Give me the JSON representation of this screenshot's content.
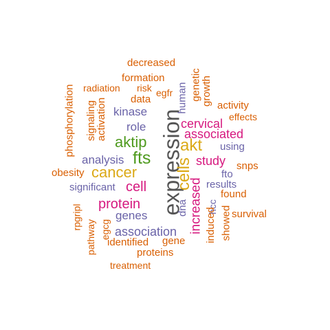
{
  "colors": {
    "orange": "#d95f02",
    "purple": "#6a63a8",
    "pink": "#d6197f",
    "green": "#4e9a1e",
    "gold": "#dba916",
    "dark": "#555555"
  },
  "words": [
    "decreased",
    "formation",
    "radiation",
    "risk",
    "data",
    "egfr",
    "kinase",
    "activation",
    "signaling",
    "phosphorylation",
    "role",
    "aktip",
    "fts",
    "expression",
    "human",
    "genetic",
    "growth",
    "activity",
    "effects",
    "cervical",
    "associated",
    "akt",
    "using",
    "study",
    "cells",
    "snps",
    "analysis",
    "cancer",
    "obesity",
    "fto",
    "results",
    "significant",
    "cell",
    "found",
    "increased",
    "hcc",
    "protein",
    "dna",
    "rpgripl",
    "genes",
    "survival",
    "induced",
    "showed",
    "association",
    "egcg",
    "pathway",
    "identified",
    "gene",
    "proteins",
    "treatment"
  ]
}
